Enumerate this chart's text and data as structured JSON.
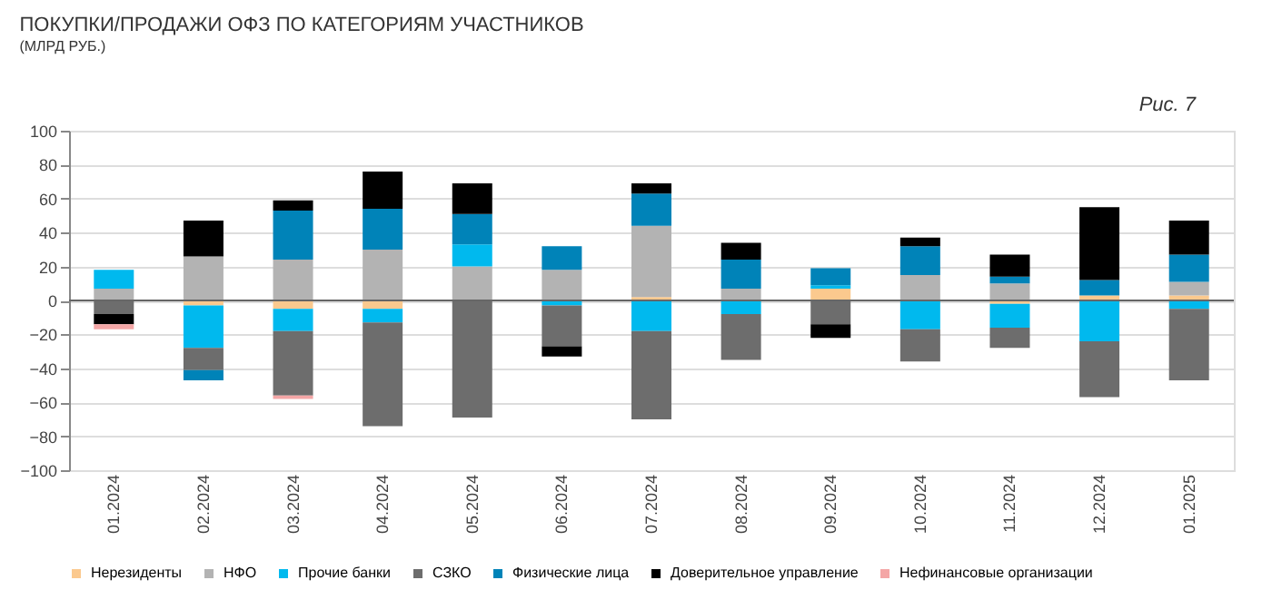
{
  "chart_data": {
    "type": "bar",
    "stacked": true,
    "title": "ПОКУПКИ/ПРОДАЖИ ОФЗ ПО КАТЕГОРИЯМ УЧАСТНИКОВ",
    "subtitle": "(МЛРД РУБ.)",
    "annotations": [
      "Рис. 7"
    ],
    "categories": [
      "01.2024",
      "02.2024",
      "03.2024",
      "04.2024",
      "05.2024",
      "06.2024",
      "07.2024",
      "08.2024",
      "09.2024",
      "10.2024",
      "11.2024",
      "12.2024",
      "01.2025"
    ],
    "series": [
      {
        "name": "Нерезиденты",
        "color": "#fbc98e",
        "values": [
          null,
          -3,
          -5,
          -5,
          null,
          null,
          2,
          null,
          7,
          null,
          -2,
          3,
          3
        ]
      },
      {
        "name": "НФО",
        "color": "#b3b3b3",
        "values": [
          7,
          26,
          24,
          30,
          20,
          18,
          42,
          7,
          null,
          15,
          10,
          null,
          8
        ]
      },
      {
        "name": "Прочие банки",
        "color": "#00b9ee",
        "values": [
          11,
          -25,
          -13,
          -8,
          13,
          -3,
          -18,
          -8,
          2,
          -17,
          -14,
          -24,
          -5
        ]
      },
      {
        "name": "СЗКО",
        "color": "#6d6d6d",
        "values": [
          -8,
          -13,
          -38,
          -61,
          -69,
          -24,
          -52,
          -27,
          -14,
          -19,
          -12,
          -33,
          -42
        ]
      },
      {
        "name": "Физические лица",
        "color": "#0083b8",
        "values": [
          null,
          -6,
          29,
          24,
          18,
          14,
          19,
          17,
          10,
          17,
          4,
          9,
          16
        ]
      },
      {
        "name": "Доверительное управление",
        "color": "#000000",
        "values": [
          -6,
          21,
          6,
          22,
          18,
          -6,
          6,
          10,
          -8,
          5,
          13,
          43,
          20
        ]
      },
      {
        "name": "Нефинансовые организации",
        "color": "#f4a6a6",
        "values": [
          -3,
          null,
          -2,
          null,
          null,
          null,
          null,
          null,
          null,
          null,
          null,
          null,
          null
        ]
      }
    ],
    "ylim": [
      -100,
      100
    ],
    "yticks": [
      -100,
      -80,
      -60,
      -40,
      -20,
      0,
      20,
      40,
      60,
      80,
      100
    ],
    "grid": "y",
    "legend": "bottom"
  }
}
